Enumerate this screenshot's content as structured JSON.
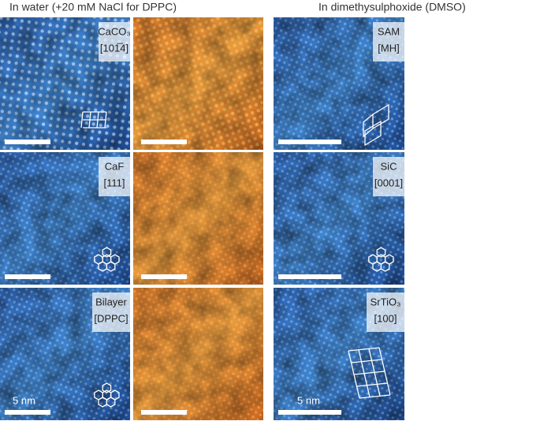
{
  "headers": [
    "In water (+20 mM NaCl for DPPC)",
    "In dimethysulphoxide (DMSO)"
  ],
  "panels": [
    {
      "name": "CaCO₃",
      "face": "[101̅4]"
    },
    {
      "name": "SAM",
      "face": "[MH]"
    },
    {
      "name": "CaF",
      "face": "[111]"
    },
    {
      "name": "SiC",
      "face": "[0001]"
    },
    {
      "name": "Bilayer",
      "face": "[DPPC]"
    },
    {
      "name": "SrTiO₃",
      "face": "[100]"
    }
  ],
  "scale_label": "5 nm"
}
